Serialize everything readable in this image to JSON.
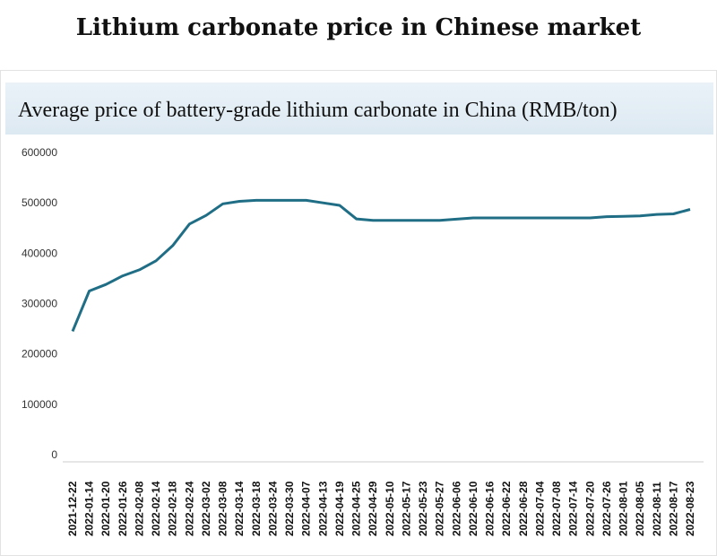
{
  "title": "Lithium carbonate price in Chinese market",
  "chart_data": {
    "type": "line",
    "title": "Average price of battery-grade lithium carbonate in China (RMB/ton)",
    "xlabel": "",
    "ylabel": "",
    "ylim": [
      0,
      600000
    ],
    "yticks": [
      "0",
      "100000",
      "200000",
      "300000",
      "400000",
      "500000",
      "600000"
    ],
    "grid": false,
    "line_color": "#1f6e86",
    "categories": [
      "2021-12-22",
      "2022-01-14",
      "2022-01-20",
      "2022-01-26",
      "2022-02-08",
      "2022-02-14",
      "2022-02-18",
      "2022-02-24",
      "2022-03-02",
      "2022-03-08",
      "2022-03-14",
      "2022-03-18",
      "2022-03-24",
      "2022-03-30",
      "2022-04-07",
      "2022-04-13",
      "2022-04-19",
      "2022-04-25",
      "2022-04-29",
      "2022-05-10",
      "2022-05-17",
      "2022-05-23",
      "2022-05-27",
      "2022-06-06",
      "2022-06-10",
      "2022-06-16",
      "2022-06-22",
      "2022-06-28",
      "2022-07-04",
      "2022-07-08",
      "2022-07-14",
      "2022-07-20",
      "2022-07-26",
      "2022-08-01",
      "2022-08-05",
      "2022-08-11",
      "2022-08-17",
      "2022-08-23"
    ],
    "values": [
      245000,
      325000,
      338000,
      355000,
      367000,
      385000,
      415000,
      458000,
      475000,
      498000,
      503000,
      505000,
      505000,
      505000,
      505000,
      500000,
      495000,
      468000,
      465000,
      465000,
      465000,
      465000,
      465000,
      467500,
      470000,
      470000,
      470000,
      470000,
      470000,
      470000,
      470000,
      470000,
      472500,
      473000,
      474000,
      477000,
      478000,
      487000
    ]
  }
}
